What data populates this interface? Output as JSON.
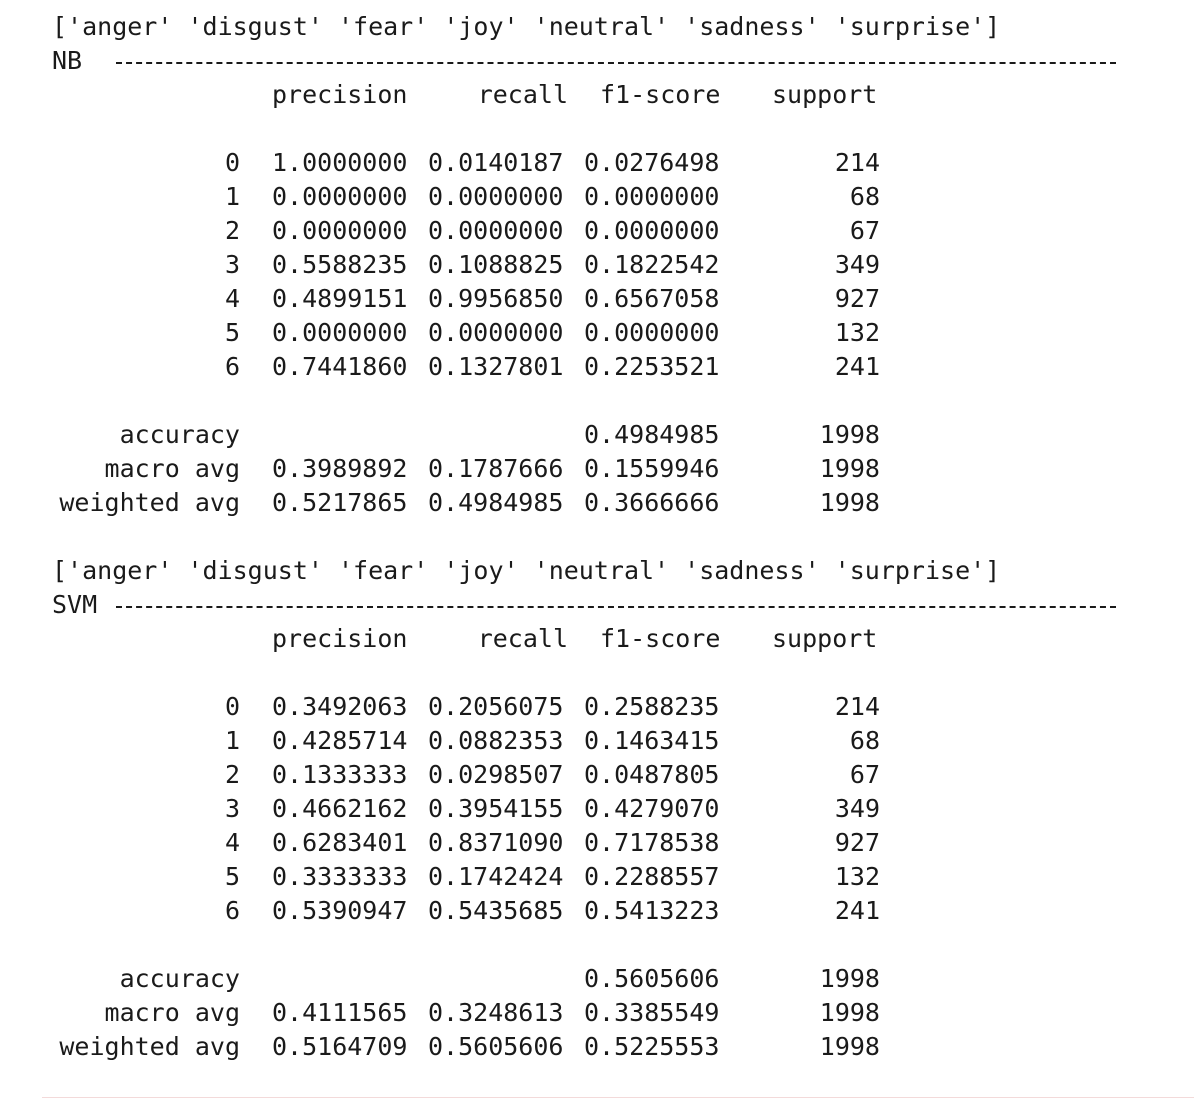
{
  "reports": [
    {
      "labels_line": "['anger' 'disgust' 'fear' 'joy' 'neutral' 'sadness' 'surprise']",
      "model": "NB",
      "headers": [
        "precision",
        "recall",
        "f1-score",
        "support"
      ],
      "rows": [
        [
          "0",
          "1.0000000",
          "0.0140187",
          "0.0276498",
          "214"
        ],
        [
          "1",
          "0.0000000",
          "0.0000000",
          "0.0000000",
          "68"
        ],
        [
          "2",
          "0.0000000",
          "0.0000000",
          "0.0000000",
          "67"
        ],
        [
          "3",
          "0.5588235",
          "0.1088825",
          "0.1822542",
          "349"
        ],
        [
          "4",
          "0.4899151",
          "0.9956850",
          "0.6567058",
          "927"
        ],
        [
          "5",
          "0.0000000",
          "0.0000000",
          "0.0000000",
          "132"
        ],
        [
          "6",
          "0.7441860",
          "0.1327801",
          "0.2253521",
          "241"
        ]
      ],
      "summary": [
        [
          "accuracy",
          "",
          "",
          "0.4984985",
          "1998"
        ],
        [
          "macro avg",
          "0.3989892",
          "0.1787666",
          "0.1559946",
          "1998"
        ],
        [
          "weighted avg",
          "0.5217865",
          "0.4984985",
          "0.3666666",
          "1998"
        ]
      ]
    },
    {
      "labels_line": "['anger' 'disgust' 'fear' 'joy' 'neutral' 'sadness' 'surprise']",
      "model": "SVM",
      "headers": [
        "precision",
        "recall",
        "f1-score",
        "support"
      ],
      "rows": [
        [
          "0",
          "0.3492063",
          "0.2056075",
          "0.2588235",
          "214"
        ],
        [
          "1",
          "0.4285714",
          "0.0882353",
          "0.1463415",
          "68"
        ],
        [
          "2",
          "0.1333333",
          "0.0298507",
          "0.0487805",
          "67"
        ],
        [
          "3",
          "0.4662162",
          "0.3954155",
          "0.4279070",
          "349"
        ],
        [
          "4",
          "0.6283401",
          "0.8371090",
          "0.7178538",
          "927"
        ],
        [
          "5",
          "0.3333333",
          "0.1742424",
          "0.2288557",
          "132"
        ],
        [
          "6",
          "0.5390947",
          "0.5435685",
          "0.5413223",
          "241"
        ]
      ],
      "summary": [
        [
          "accuracy",
          "",
          "",
          "0.5605606",
          "1998"
        ],
        [
          "macro avg",
          "0.4111565",
          "0.3248613",
          "0.3385549",
          "1998"
        ],
        [
          "weighted avg",
          "0.5164709",
          "0.5605606",
          "0.5225553",
          "1998"
        ]
      ]
    }
  ]
}
